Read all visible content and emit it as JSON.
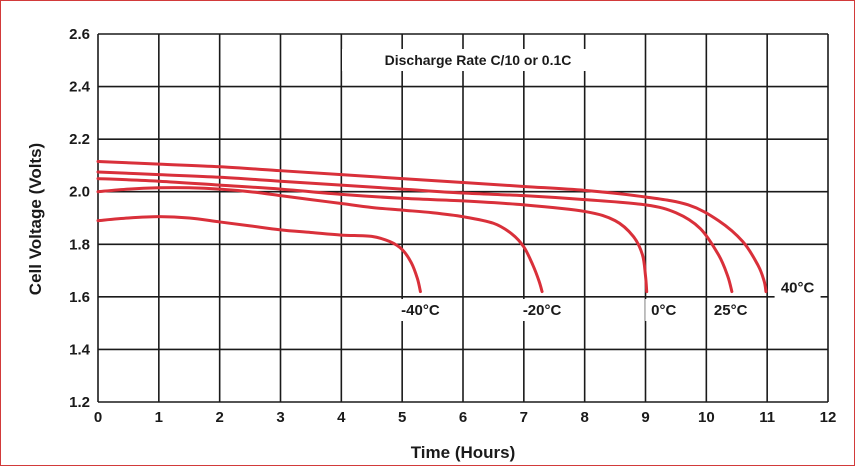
{
  "chart_data": {
    "type": "line",
    "annotation": "Discharge Rate C/10 or 0.1C",
    "xlabel": "Time (Hours)",
    "ylabel": "Cell Voltage (Volts)",
    "xlim": [
      0,
      12
    ],
    "ylim": [
      1.2,
      2.6
    ],
    "x_ticks": [
      "0",
      "1",
      "2",
      "3",
      "4",
      "5",
      "6",
      "7",
      "8",
      "9",
      "10",
      "11",
      "12"
    ],
    "y_ticks": [
      "1.2",
      "1.4",
      "1.6",
      "1.8",
      "2.0",
      "2.2",
      "2.4",
      "2.6"
    ],
    "grid": true,
    "series": [
      {
        "name": "-40°C",
        "color": "#d9303a",
        "points": [
          [
            0,
            1.89
          ],
          [
            0.5,
            1.9
          ],
          [
            1,
            1.905
          ],
          [
            1.5,
            1.9
          ],
          [
            2,
            1.885
          ],
          [
            2.5,
            1.87
          ],
          [
            3,
            1.855
          ],
          [
            3.5,
            1.845
          ],
          [
            4,
            1.835
          ],
          [
            4.5,
            1.83
          ],
          [
            4.8,
            1.81
          ],
          [
            5.0,
            1.78
          ],
          [
            5.15,
            1.73
          ],
          [
            5.25,
            1.67
          ],
          [
            5.3,
            1.62
          ]
        ]
      },
      {
        "name": "-20°C",
        "color": "#d9303a",
        "points": [
          [
            0,
            2.0
          ],
          [
            0.5,
            2.01
          ],
          [
            1,
            2.015
          ],
          [
            1.5,
            2.015
          ],
          [
            2,
            2.01
          ],
          [
            2.5,
            2.0
          ],
          [
            3,
            1.985
          ],
          [
            3.5,
            1.97
          ],
          [
            4,
            1.955
          ],
          [
            4.5,
            1.94
          ],
          [
            5,
            1.93
          ],
          [
            5.5,
            1.92
          ],
          [
            6,
            1.905
          ],
          [
            6.5,
            1.88
          ],
          [
            6.8,
            1.84
          ],
          [
            7.0,
            1.79
          ],
          [
            7.15,
            1.72
          ],
          [
            7.25,
            1.66
          ],
          [
            7.3,
            1.62
          ]
        ]
      },
      {
        "name": "0°C",
        "color": "#d9303a",
        "points": [
          [
            0,
            2.05
          ],
          [
            1,
            2.04
          ],
          [
            2,
            2.025
          ],
          [
            3,
            2.01
          ],
          [
            4,
            1.99
          ],
          [
            5,
            1.975
          ],
          [
            6,
            1.965
          ],
          [
            7,
            1.95
          ],
          [
            8,
            1.925
          ],
          [
            8.5,
            1.89
          ],
          [
            8.8,
            1.83
          ],
          [
            8.95,
            1.76
          ],
          [
            9.0,
            1.68
          ],
          [
            9.02,
            1.62
          ]
        ]
      },
      {
        "name": "25°C",
        "color": "#d9303a",
        "points": [
          [
            0,
            2.075
          ],
          [
            1,
            2.065
          ],
          [
            2,
            2.055
          ],
          [
            3,
            2.04
          ],
          [
            4,
            2.025
          ],
          [
            5,
            2.01
          ],
          [
            6,
            1.995
          ],
          [
            7,
            1.985
          ],
          [
            8,
            1.97
          ],
          [
            9,
            1.95
          ],
          [
            9.5,
            1.92
          ],
          [
            9.9,
            1.86
          ],
          [
            10.2,
            1.76
          ],
          [
            10.35,
            1.68
          ],
          [
            10.42,
            1.62
          ]
        ]
      },
      {
        "name": "40°C",
        "color": "#d9303a",
        "points": [
          [
            0,
            2.115
          ],
          [
            1,
            2.105
          ],
          [
            2,
            2.095
          ],
          [
            3,
            2.08
          ],
          [
            4,
            2.065
          ],
          [
            5,
            2.05
          ],
          [
            6,
            2.035
          ],
          [
            7,
            2.02
          ],
          [
            8,
            2.005
          ],
          [
            9,
            1.98
          ],
          [
            9.7,
            1.95
          ],
          [
            10.2,
            1.89
          ],
          [
            10.6,
            1.81
          ],
          [
            10.85,
            1.72
          ],
          [
            10.95,
            1.66
          ],
          [
            10.98,
            1.62
          ]
        ]
      }
    ],
    "series_labels": [
      {
        "text": "-40°C",
        "x": 5.3,
        "y": 1.55
      },
      {
        "text": "-20°C",
        "x": 7.3,
        "y": 1.55
      },
      {
        "text": "0°C",
        "x": 9.3,
        "y": 1.55
      },
      {
        "text": "25°C",
        "x": 10.4,
        "y": 1.55
      },
      {
        "text": "40°C",
        "x": 11.5,
        "y": 1.635
      }
    ]
  }
}
